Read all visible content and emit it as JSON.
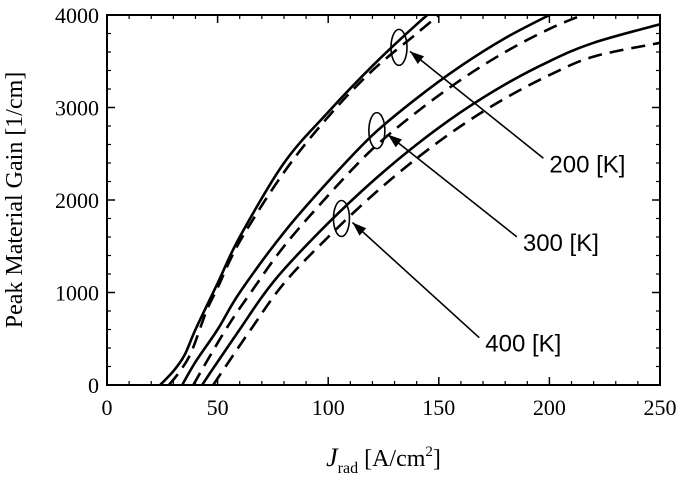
{
  "chart_data": {
    "type": "line",
    "xlabel_main": "J",
    "xlabel_sub": "rad",
    "xlabel_unit": " [A/cm",
    "xlabel_sup": "2",
    "xlabel_close": "]",
    "ylabel": "Peak Material Gain [1/cm]",
    "xlim": [
      0,
      250
    ],
    "ylim": [
      0,
      4000
    ],
    "xticks": [
      "0",
      "50",
      "100",
      "150",
      "200",
      "250"
    ],
    "yticks": [
      "0",
      "1000",
      "2000",
      "3000",
      "4000"
    ],
    "series": [
      {
        "style": "solid",
        "x": [
          24,
          30,
          35,
          40,
          50,
          60,
          80,
          100,
          120,
          140,
          150
        ],
        "y": [
          0,
          150,
          320,
          600,
          1100,
          1600,
          2400,
          2950,
          3450,
          3900,
          4100
        ]
      },
      {
        "style": "dashed",
        "x": [
          28,
          33,
          38,
          45,
          50,
          60,
          80,
          100,
          120,
          140,
          155
        ],
        "y": [
          0,
          150,
          350,
          800,
          1050,
          1550,
          2300,
          2900,
          3400,
          3800,
          4100
        ]
      },
      {
        "style": "solid",
        "x": [
          34,
          40,
          50,
          60,
          80,
          100,
          120,
          140,
          160,
          180,
          200
        ],
        "y": [
          0,
          250,
          600,
          1000,
          1650,
          2200,
          2700,
          3100,
          3450,
          3750,
          4000
        ]
      },
      {
        "style": "dashed",
        "x": [
          39,
          45,
          55,
          65,
          80,
          100,
          120,
          140,
          160,
          180,
          200,
          215
        ],
        "y": [
          0,
          250,
          650,
          1000,
          1500,
          2050,
          2550,
          2950,
          3300,
          3600,
          3850,
          4000
        ]
      },
      {
        "style": "solid",
        "x": [
          43,
          50,
          60,
          70,
          80,
          100,
          120,
          140,
          160,
          180,
          200,
          220,
          250
        ],
        "y": [
          0,
          250,
          600,
          950,
          1250,
          1750,
          2200,
          2600,
          2950,
          3250,
          3500,
          3700,
          3900
        ]
      },
      {
        "style": "dashed",
        "x": [
          48,
          55,
          65,
          80,
          100,
          120,
          140,
          160,
          180,
          200,
          220,
          250
        ],
        "y": [
          0,
          250,
          600,
          1100,
          1600,
          2050,
          2450,
          2800,
          3100,
          3350,
          3550,
          3700
        ]
      }
    ],
    "annotations": [
      {
        "label": "200 [K]",
        "target": [
          132,
          3650
        ],
        "text_at": [
          200,
          2300
        ]
      },
      {
        "label": "300 [K]",
        "target": [
          122,
          2750
        ],
        "text_at": [
          188,
          1450
        ]
      },
      {
        "label": "400 [K]",
        "target": [
          106,
          1800
        ],
        "text_at": [
          171,
          360
        ]
      }
    ]
  }
}
